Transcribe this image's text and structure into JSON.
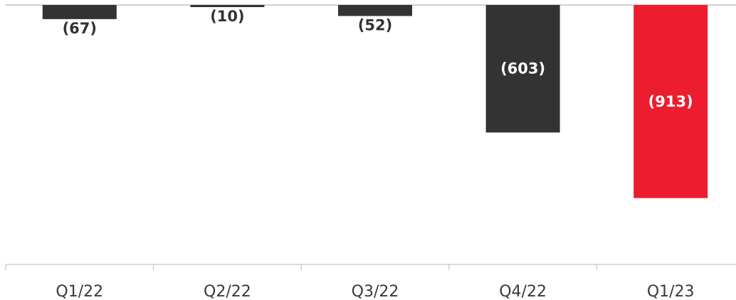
{
  "chart_data": {
    "type": "bar",
    "categories": [
      "Q1/22",
      "Q2/22",
      "Q3/22",
      "Q4/22",
      "Q1/23"
    ],
    "values": [
      -67,
      -10,
      -52,
      -603,
      -913
    ],
    "value_labels": [
      "(67)",
      "(10)",
      "(52)",
      "(603)",
      "(913)"
    ],
    "title": "",
    "xlabel": "",
    "ylabel": "",
    "ylim": [
      -1200,
      0
    ],
    "grid": false,
    "legend": "none"
  },
  "colors": {
    "default_bar": "#333333",
    "highlight_bar": "#ed1c2e",
    "label_dark": "#333333",
    "label_light": "#ffffff",
    "axis_line": "#d0d0d0"
  },
  "highlight_index": 4
}
